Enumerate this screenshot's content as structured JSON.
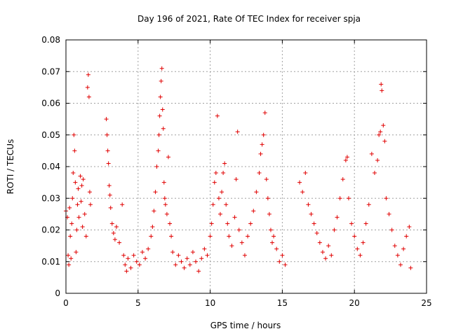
{
  "chart_data": {
    "type": "scatter",
    "title": "Day 196 of 2021, Rate Of TEC Index for receiver spja",
    "xlabel": "GPS time / hours",
    "ylabel": "ROTI / TECUs",
    "xlim": [
      0,
      25
    ],
    "ylim": [
      0,
      0.08
    ],
    "grid": true,
    "marker": "plus",
    "color": "#e00000",
    "x_ticks": [
      {
        "value": 0,
        "label": "0"
      },
      {
        "value": 5,
        "label": "5"
      },
      {
        "value": 10,
        "label": "10"
      },
      {
        "value": 15,
        "label": "15"
      },
      {
        "value": 20,
        "label": "20"
      },
      {
        "value": 25,
        "label": "25"
      }
    ],
    "y_ticks": [
      {
        "value": 0,
        "label": "0"
      },
      {
        "value": 0.01,
        "label": "0.01"
      },
      {
        "value": 0.02,
        "label": "0.02"
      },
      {
        "value": 0.03,
        "label": "0.03"
      },
      {
        "value": 0.04,
        "label": "0.04"
      },
      {
        "value": 0.05,
        "label": "0.05"
      },
      {
        "value": 0.06,
        "label": "0.06"
      },
      {
        "value": 0.07,
        "label": "0.07"
      },
      {
        "value": 0.08,
        "label": "0.08"
      }
    ],
    "series": [
      {
        "name": "ROTI",
        "points": [
          [
            0.0,
            0.026
          ],
          [
            0.1,
            0.024
          ],
          [
            0.15,
            0.012
          ],
          [
            0.2,
            0.009
          ],
          [
            0.25,
            0.027
          ],
          [
            0.3,
            0.018
          ],
          [
            0.35,
            0.011
          ],
          [
            0.4,
            0.022
          ],
          [
            0.45,
            0.03
          ],
          [
            0.5,
            0.038
          ],
          [
            0.55,
            0.05
          ],
          [
            0.6,
            0.045
          ],
          [
            0.65,
            0.035
          ],
          [
            0.7,
            0.013
          ],
          [
            0.75,
            0.02
          ],
          [
            0.8,
            0.028
          ],
          [
            0.85,
            0.033
          ],
          [
            0.9,
            0.024
          ],
          [
            1.0,
            0.037
          ],
          [
            1.05,
            0.029
          ],
          [
            1.1,
            0.034
          ],
          [
            1.15,
            0.021
          ],
          [
            1.2,
            0.036
          ],
          [
            1.3,
            0.025
          ],
          [
            1.4,
            0.018
          ],
          [
            1.5,
            0.065
          ],
          [
            1.55,
            0.069
          ],
          [
            1.6,
            0.062
          ],
          [
            1.65,
            0.032
          ],
          [
            1.7,
            0.028
          ],
          [
            2.8,
            0.055
          ],
          [
            2.85,
            0.05
          ],
          [
            2.9,
            0.045
          ],
          [
            2.95,
            0.041
          ],
          [
            3.0,
            0.034
          ],
          [
            3.05,
            0.031
          ],
          [
            3.1,
            0.027
          ],
          [
            3.2,
            0.022
          ],
          [
            3.3,
            0.019
          ],
          [
            3.4,
            0.017
          ],
          [
            3.5,
            0.021
          ],
          [
            3.7,
            0.016
          ],
          [
            3.9,
            0.028
          ],
          [
            4.0,
            0.012
          ],
          [
            4.1,
            0.009
          ],
          [
            4.2,
            0.007
          ],
          [
            4.3,
            0.011
          ],
          [
            4.5,
            0.008
          ],
          [
            4.7,
            0.012
          ],
          [
            4.9,
            0.01
          ],
          [
            5.1,
            0.009
          ],
          [
            5.3,
            0.013
          ],
          [
            5.5,
            0.011
          ],
          [
            5.7,
            0.014
          ],
          [
            5.9,
            0.018
          ],
          [
            6.0,
            0.021
          ],
          [
            6.1,
            0.026
          ],
          [
            6.2,
            0.032
          ],
          [
            6.3,
            0.04
          ],
          [
            6.4,
            0.045
          ],
          [
            6.45,
            0.05
          ],
          [
            6.5,
            0.056
          ],
          [
            6.55,
            0.062
          ],
          [
            6.6,
            0.067
          ],
          [
            6.65,
            0.071
          ],
          [
            6.7,
            0.058
          ],
          [
            6.75,
            0.052
          ],
          [
            6.8,
            0.035
          ],
          [
            6.85,
            0.03
          ],
          [
            6.9,
            0.028
          ],
          [
            7.0,
            0.025
          ],
          [
            7.1,
            0.043
          ],
          [
            7.2,
            0.022
          ],
          [
            7.3,
            0.018
          ],
          [
            7.4,
            0.013
          ],
          [
            7.6,
            0.009
          ],
          [
            7.8,
            0.012
          ],
          [
            8.0,
            0.01
          ],
          [
            8.2,
            0.008
          ],
          [
            8.4,
            0.011
          ],
          [
            8.6,
            0.009
          ],
          [
            8.8,
            0.013
          ],
          [
            9.0,
            0.01
          ],
          [
            9.2,
            0.007
          ],
          [
            9.4,
            0.011
          ],
          [
            9.6,
            0.014
          ],
          [
            9.8,
            0.012
          ],
          [
            10.0,
            0.018
          ],
          [
            10.1,
            0.022
          ],
          [
            10.2,
            0.028
          ],
          [
            10.3,
            0.035
          ],
          [
            10.4,
            0.038
          ],
          [
            10.5,
            0.056
          ],
          [
            10.6,
            0.03
          ],
          [
            10.7,
            0.025
          ],
          [
            10.8,
            0.032
          ],
          [
            10.9,
            0.038
          ],
          [
            11.0,
            0.041
          ],
          [
            11.1,
            0.028
          ],
          [
            11.2,
            0.022
          ],
          [
            11.3,
            0.018
          ],
          [
            11.5,
            0.015
          ],
          [
            11.7,
            0.024
          ],
          [
            11.8,
            0.036
          ],
          [
            11.9,
            0.051
          ],
          [
            12.0,
            0.02
          ],
          [
            12.2,
            0.016
          ],
          [
            12.4,
            0.012
          ],
          [
            12.6,
            0.018
          ],
          [
            12.8,
            0.022
          ],
          [
            13.0,
            0.026
          ],
          [
            13.2,
            0.032
          ],
          [
            13.4,
            0.038
          ],
          [
            13.5,
            0.044
          ],
          [
            13.6,
            0.047
          ],
          [
            13.7,
            0.05
          ],
          [
            13.8,
            0.057
          ],
          [
            13.9,
            0.036
          ],
          [
            14.0,
            0.03
          ],
          [
            14.1,
            0.025
          ],
          [
            14.2,
            0.02
          ],
          [
            14.3,
            0.016
          ],
          [
            14.4,
            0.018
          ],
          [
            14.6,
            0.014
          ],
          [
            14.8,
            0.01
          ],
          [
            15.0,
            0.012
          ],
          [
            15.2,
            0.009
          ],
          [
            16.2,
            0.035
          ],
          [
            16.4,
            0.032
          ],
          [
            16.6,
            0.038
          ],
          [
            16.8,
            0.028
          ],
          [
            17.0,
            0.025
          ],
          [
            17.2,
            0.022
          ],
          [
            17.4,
            0.019
          ],
          [
            17.6,
            0.016
          ],
          [
            17.8,
            0.013
          ],
          [
            18.0,
            0.011
          ],
          [
            18.2,
            0.015
          ],
          [
            18.4,
            0.012
          ],
          [
            18.6,
            0.02
          ],
          [
            18.8,
            0.024
          ],
          [
            19.0,
            0.03
          ],
          [
            19.2,
            0.036
          ],
          [
            19.4,
            0.042
          ],
          [
            19.5,
            0.043
          ],
          [
            19.6,
            0.03
          ],
          [
            19.8,
            0.022
          ],
          [
            20.0,
            0.018
          ],
          [
            20.2,
            0.014
          ],
          [
            20.4,
            0.012
          ],
          [
            20.6,
            0.016
          ],
          [
            20.8,
            0.022
          ],
          [
            21.0,
            0.028
          ],
          [
            21.2,
            0.044
          ],
          [
            21.4,
            0.038
          ],
          [
            21.6,
            0.042
          ],
          [
            21.7,
            0.05
          ],
          [
            21.8,
            0.051
          ],
          [
            21.85,
            0.066
          ],
          [
            21.9,
            0.064
          ],
          [
            22.0,
            0.053
          ],
          [
            22.1,
            0.048
          ],
          [
            22.2,
            0.03
          ],
          [
            22.4,
            0.025
          ],
          [
            22.6,
            0.02
          ],
          [
            22.8,
            0.015
          ],
          [
            23.0,
            0.012
          ],
          [
            23.2,
            0.009
          ],
          [
            23.4,
            0.014
          ],
          [
            23.6,
            0.018
          ],
          [
            23.8,
            0.021
          ],
          [
            23.9,
            0.008
          ]
        ]
      }
    ]
  }
}
